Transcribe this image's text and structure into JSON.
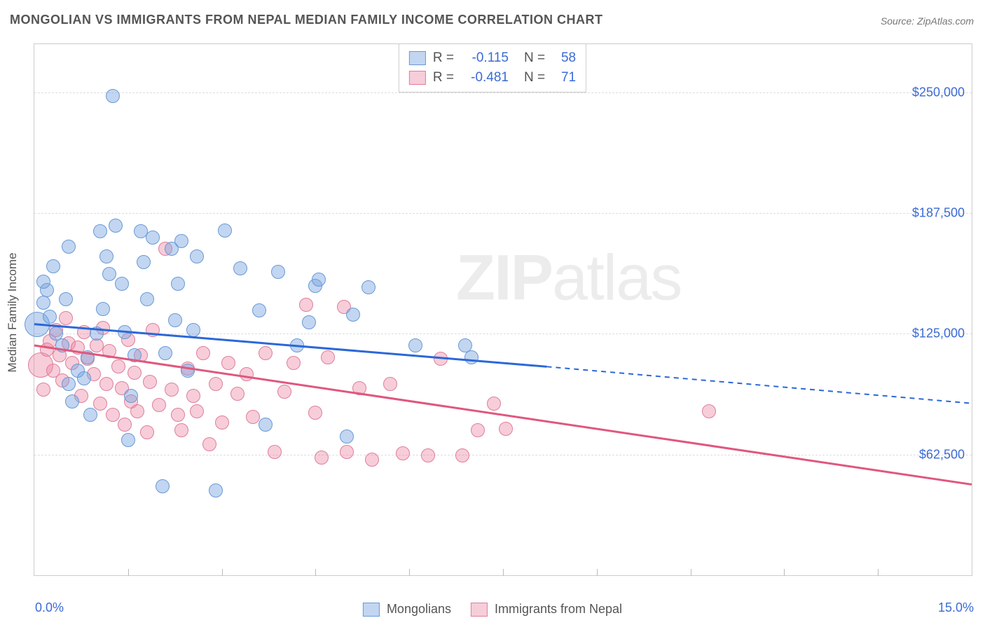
{
  "title": "MONGOLIAN VS IMMIGRANTS FROM NEPAL MEDIAN FAMILY INCOME CORRELATION CHART",
  "source": "Source: ZipAtlas.com",
  "y_axis_title": "Median Family Income",
  "watermark": {
    "bold": "ZIP",
    "rest": "atlas"
  },
  "colors": {
    "series_a_fill": "rgba(120,165,225,0.45)",
    "series_a_stroke": "#6a99d6",
    "series_a_line": "#2b68d8",
    "series_b_fill": "rgba(235,130,160,0.40)",
    "series_b_stroke": "#de7f9b",
    "series_b_line": "#e0577e",
    "tick_label": "#3b6bd6",
    "grid": "#dddddd",
    "text": "#555555"
  },
  "chart": {
    "type": "scatter",
    "xlim": [
      0,
      15
    ],
    "ylim": [
      0,
      275000
    ],
    "x_ticks": [
      1.5,
      3.0,
      4.5,
      6.0,
      7.5,
      9.0,
      10.5,
      12.0,
      13.5
    ],
    "y_gridlines": [
      {
        "value": 62500,
        "label": "$62,500"
      },
      {
        "value": 125000,
        "label": "$125,000"
      },
      {
        "value": 187500,
        "label": "$187,500"
      },
      {
        "value": 250000,
        "label": "$250,000"
      }
    ],
    "x_label_min": "0.0%",
    "x_label_max": "15.0%",
    "marker_radius": 10,
    "marker_large_radius": 18
  },
  "legend_box": {
    "rows": [
      {
        "series": "a",
        "r_label": "R =",
        "r_value": "-0.115",
        "n_label": "N =",
        "n_value": "58"
      },
      {
        "series": "b",
        "r_label": "R =",
        "r_value": "-0.481",
        "n_label": "N =",
        "n_value": "71"
      }
    ]
  },
  "bottom_legend": [
    {
      "series": "a",
      "label": "Mongolians"
    },
    {
      "series": "b",
      "label": "Immigants from Nepal",
      "label_correct": "Immigrants from Nepal"
    }
  ],
  "series_a": {
    "name": "Mongolians",
    "trend": {
      "x1": 0,
      "y1": 130000,
      "x2_solid": 8.2,
      "y2_solid": 108000,
      "x2": 15,
      "y2": 89000
    },
    "points": [
      {
        "x": 0.05,
        "y": 130000,
        "r": 18
      },
      {
        "x": 1.25,
        "y": 248000
      },
      {
        "x": 0.15,
        "y": 141000
      },
      {
        "x": 0.2,
        "y": 147500
      },
      {
        "x": 0.25,
        "y": 134000
      },
      {
        "x": 0.15,
        "y": 152000
      },
      {
        "x": 0.3,
        "y": 160000
      },
      {
        "x": 0.55,
        "y": 170000
      },
      {
        "x": 0.35,
        "y": 125000
      },
      {
        "x": 0.45,
        "y": 119000
      },
      {
        "x": 0.5,
        "y": 143000
      },
      {
        "x": 0.6,
        "y": 90000
      },
      {
        "x": 0.55,
        "y": 99000
      },
      {
        "x": 0.7,
        "y": 106000
      },
      {
        "x": 0.8,
        "y": 102000
      },
      {
        "x": 0.85,
        "y": 113000
      },
      {
        "x": 0.9,
        "y": 83000
      },
      {
        "x": 1.0,
        "y": 125000
      },
      {
        "x": 1.05,
        "y": 178000
      },
      {
        "x": 1.15,
        "y": 165000
      },
      {
        "x": 1.1,
        "y": 138000
      },
      {
        "x": 1.2,
        "y": 156000
      },
      {
        "x": 1.3,
        "y": 181000
      },
      {
        "x": 1.4,
        "y": 151000
      },
      {
        "x": 1.45,
        "y": 126000
      },
      {
        "x": 1.5,
        "y": 70000
      },
      {
        "x": 1.55,
        "y": 93000
      },
      {
        "x": 1.6,
        "y": 114000
      },
      {
        "x": 1.7,
        "y": 178000
      },
      {
        "x": 1.75,
        "y": 162000
      },
      {
        "x": 1.8,
        "y": 143000
      },
      {
        "x": 1.9,
        "y": 175000
      },
      {
        "x": 2.05,
        "y": 46000
      },
      {
        "x": 2.1,
        "y": 115000
      },
      {
        "x": 2.2,
        "y": 169000
      },
      {
        "x": 2.25,
        "y": 132000
      },
      {
        "x": 2.3,
        "y": 151000
      },
      {
        "x": 2.35,
        "y": 173000
      },
      {
        "x": 2.45,
        "y": 106000
      },
      {
        "x": 2.55,
        "y": 127000
      },
      {
        "x": 2.6,
        "y": 165000
      },
      {
        "x": 2.9,
        "y": 44000
      },
      {
        "x": 3.05,
        "y": 178500
      },
      {
        "x": 3.3,
        "y": 159000
      },
      {
        "x": 3.6,
        "y": 137000
      },
      {
        "x": 3.7,
        "y": 78000
      },
      {
        "x": 3.9,
        "y": 157000
      },
      {
        "x": 4.2,
        "y": 119000
      },
      {
        "x": 4.4,
        "y": 131000
      },
      {
        "x": 4.5,
        "y": 150000
      },
      {
        "x": 4.55,
        "y": 153000
      },
      {
        "x": 5.0,
        "y": 72000
      },
      {
        "x": 5.1,
        "y": 135000
      },
      {
        "x": 5.35,
        "y": 149000
      },
      {
        "x": 6.1,
        "y": 119000
      },
      {
        "x": 6.9,
        "y": 119000
      },
      {
        "x": 7.0,
        "y": 113000
      }
    ]
  },
  "series_b": {
    "name": "Immigrants from Nepal",
    "trend": {
      "x1": 0,
      "y1": 119000,
      "x2_solid": 15,
      "y2_solid": 47000,
      "x2": 15,
      "y2": 47000
    },
    "points": [
      {
        "x": 0.1,
        "y": 109000,
        "r": 18
      },
      {
        "x": 0.15,
        "y": 96000
      },
      {
        "x": 0.2,
        "y": 117000
      },
      {
        "x": 0.25,
        "y": 121000
      },
      {
        "x": 0.3,
        "y": 106000
      },
      {
        "x": 0.35,
        "y": 127000
      },
      {
        "x": 0.4,
        "y": 114000
      },
      {
        "x": 0.45,
        "y": 101000
      },
      {
        "x": 0.5,
        "y": 133000
      },
      {
        "x": 0.55,
        "y": 120000
      },
      {
        "x": 0.6,
        "y": 110000
      },
      {
        "x": 0.7,
        "y": 118000
      },
      {
        "x": 0.75,
        "y": 93000
      },
      {
        "x": 0.8,
        "y": 126000
      },
      {
        "x": 0.85,
        "y": 112000
      },
      {
        "x": 0.95,
        "y": 104000
      },
      {
        "x": 1.0,
        "y": 119000
      },
      {
        "x": 1.05,
        "y": 89000
      },
      {
        "x": 1.1,
        "y": 128000
      },
      {
        "x": 1.15,
        "y": 99000
      },
      {
        "x": 1.2,
        "y": 116000
      },
      {
        "x": 1.25,
        "y": 83000
      },
      {
        "x": 1.35,
        "y": 108000
      },
      {
        "x": 1.4,
        "y": 97000
      },
      {
        "x": 1.45,
        "y": 78000
      },
      {
        "x": 1.5,
        "y": 122000
      },
      {
        "x": 1.55,
        "y": 90000
      },
      {
        "x": 1.6,
        "y": 105000
      },
      {
        "x": 1.65,
        "y": 85000
      },
      {
        "x": 1.7,
        "y": 114000
      },
      {
        "x": 1.8,
        "y": 74000
      },
      {
        "x": 1.85,
        "y": 100000
      },
      {
        "x": 1.9,
        "y": 127000
      },
      {
        "x": 2.0,
        "y": 88000
      },
      {
        "x": 2.1,
        "y": 169000
      },
      {
        "x": 2.2,
        "y": 96000
      },
      {
        "x": 2.3,
        "y": 83000
      },
      {
        "x": 2.35,
        "y": 75000
      },
      {
        "x": 2.45,
        "y": 107000
      },
      {
        "x": 2.55,
        "y": 93000
      },
      {
        "x": 2.6,
        "y": 85000
      },
      {
        "x": 2.7,
        "y": 115000
      },
      {
        "x": 2.8,
        "y": 68000
      },
      {
        "x": 2.9,
        "y": 99000
      },
      {
        "x": 3.0,
        "y": 79000
      },
      {
        "x": 3.1,
        "y": 110000
      },
      {
        "x": 3.25,
        "y": 94000
      },
      {
        "x": 3.4,
        "y": 104000
      },
      {
        "x": 3.5,
        "y": 82000
      },
      {
        "x": 3.7,
        "y": 115000
      },
      {
        "x": 3.85,
        "y": 64000
      },
      {
        "x": 4.0,
        "y": 95000
      },
      {
        "x": 4.15,
        "y": 110000
      },
      {
        "x": 4.35,
        "y": 140000
      },
      {
        "x": 4.5,
        "y": 84000
      },
      {
        "x": 4.6,
        "y": 61000
      },
      {
        "x": 4.7,
        "y": 113000
      },
      {
        "x": 4.95,
        "y": 139000
      },
      {
        "x": 5.0,
        "y": 64000
      },
      {
        "x": 5.2,
        "y": 97000
      },
      {
        "x": 5.4,
        "y": 60000
      },
      {
        "x": 5.7,
        "y": 99000
      },
      {
        "x": 5.9,
        "y": 63000
      },
      {
        "x": 6.3,
        "y": 62000
      },
      {
        "x": 6.5,
        "y": 112000
      },
      {
        "x": 6.85,
        "y": 62000
      },
      {
        "x": 7.1,
        "y": 75000
      },
      {
        "x": 7.35,
        "y": 89000
      },
      {
        "x": 7.55,
        "y": 76000
      },
      {
        "x": 10.8,
        "y": 85000
      }
    ]
  }
}
